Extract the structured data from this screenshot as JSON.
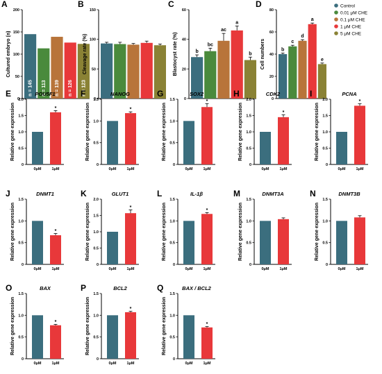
{
  "chart_data": [
    {
      "id": "A",
      "panel_label": "A",
      "type": "bar",
      "title": "",
      "ylabel": "Cultured embryo (n)",
      "ylim": [
        0,
        200
      ],
      "yticks": [
        0,
        50,
        100,
        150,
        200
      ],
      "categories": [
        "Control",
        "0.01 µM CHE",
        "0.1 µM CHE",
        "1 µM CHE",
        "5 µM CHE"
      ],
      "values": [
        145,
        113,
        139,
        126,
        123
      ],
      "bar_labels": [
        "n = 145",
        "n = 113",
        "n = 139",
        "n = 126",
        "n = 123"
      ]
    },
    {
      "id": "B",
      "panel_label": "B",
      "type": "bar",
      "title": "",
      "ylabel": "Cleavage rate (%)",
      "ylim": [
        0,
        150
      ],
      "yticks": [
        0,
        50,
        100,
        150
      ],
      "categories": [
        "Control",
        "0.01 µM CHE",
        "0.1 µM CHE",
        "1 µM CHE",
        "5 µM CHE"
      ],
      "values": [
        93,
        92,
        91,
        94,
        90
      ],
      "errors": [
        2,
        3,
        2,
        3,
        2
      ]
    },
    {
      "id": "C",
      "panel_label": "C",
      "type": "bar",
      "title": "",
      "ylabel": "Blastocyst rate (%)",
      "ylim": [
        0,
        60
      ],
      "yticks": [
        0,
        20,
        40,
        60
      ],
      "categories": [
        "Control",
        "0.01 µM CHE",
        "0.1 µM CHE",
        "1 µM CHE",
        "5 µM CHE"
      ],
      "values": [
        28,
        32,
        39,
        46,
        26
      ],
      "errors": [
        1.5,
        2,
        5,
        3,
        2
      ],
      "letters": [
        "b",
        "bc",
        "ac",
        "a",
        "b"
      ]
    },
    {
      "id": "D",
      "panel_label": "D",
      "type": "bar",
      "title": "",
      "ylabel": "Cell numbers",
      "ylim": [
        0,
        80
      ],
      "yticks": [
        0,
        20,
        40,
        60,
        80
      ],
      "categories": [
        "Control",
        "0.01 µM CHE",
        "0.1 µM CHE",
        "1 µM CHE",
        "5 µM CHE"
      ],
      "values": [
        40,
        47,
        52,
        67,
        31
      ],
      "errors": [
        1,
        1,
        1,
        1,
        1
      ],
      "letters": [
        "b",
        "c",
        "d",
        "a",
        "e"
      ]
    },
    {
      "id": "E",
      "panel_label": "E",
      "type": "bar",
      "title": "POU5F1",
      "ylabel": "Relative gene expression",
      "ylim": [
        0,
        2.0
      ],
      "yticks": [
        0,
        0.5,
        1.0,
        1.5,
        2.0
      ],
      "categories": [
        "0μM",
        "1μM"
      ],
      "values": [
        1.0,
        1.6
      ],
      "errors": [
        0,
        0.05
      ],
      "sig": [
        "",
        "*"
      ]
    },
    {
      "id": "F",
      "panel_label": "F",
      "type": "bar",
      "title": "NANOG",
      "ylabel": "Relative gene expression",
      "ylim": [
        0,
        1.5
      ],
      "yticks": [
        0,
        0.5,
        1.0,
        1.5
      ],
      "categories": [
        "0μM",
        "1μM"
      ],
      "values": [
        1.0,
        1.18
      ],
      "errors": [
        0,
        0.03
      ],
      "sig": [
        "",
        "*"
      ]
    },
    {
      "id": "G",
      "panel_label": "G",
      "type": "bar",
      "title": "SOX2",
      "ylabel": "Relative gene expression",
      "ylim": [
        0,
        1.5
      ],
      "yticks": [
        0,
        0.5,
        1.0,
        1.5
      ],
      "categories": [
        "0μM",
        "1μM"
      ],
      "values": [
        1.0,
        1.32
      ],
      "errors": [
        0,
        0.08
      ],
      "sig": [
        "",
        "*"
      ]
    },
    {
      "id": "H",
      "panel_label": "H",
      "type": "bar",
      "title": "CDK2",
      "ylabel": "Relative gene expression",
      "ylim": [
        0,
        2.0
      ],
      "yticks": [
        0,
        0.5,
        1.0,
        1.5,
        2.0
      ],
      "categories": [
        "0μM",
        "1μM"
      ],
      "values": [
        1.0,
        1.45
      ],
      "errors": [
        0,
        0.07
      ],
      "sig": [
        "",
        "*"
      ]
    },
    {
      "id": "I",
      "panel_label": "I",
      "type": "bar",
      "title": "PCNA",
      "ylabel": "Relative gene expression",
      "ylim": [
        0,
        2.0
      ],
      "yticks": [
        0,
        0.5,
        1.0,
        1.5,
        2.0
      ],
      "categories": [
        "0μM",
        "1μM"
      ],
      "values": [
        1.0,
        1.8
      ],
      "errors": [
        0,
        0.06
      ],
      "sig": [
        "",
        "*"
      ]
    },
    {
      "id": "J",
      "panel_label": "J",
      "type": "bar",
      "title": "DNMT1",
      "ylabel": "Relative gene expression",
      "ylim": [
        0,
        1.5
      ],
      "yticks": [
        0,
        0.5,
        1.0,
        1.5
      ],
      "categories": [
        "0μM",
        "1μM"
      ],
      "values": [
        1.0,
        0.67
      ],
      "errors": [
        0,
        0.04
      ],
      "sig": [
        "",
        "*"
      ]
    },
    {
      "id": "K",
      "panel_label": "K",
      "type": "bar",
      "title": "GLUT1",
      "ylabel": "Relative gene expression",
      "ylim": [
        0,
        2.0
      ],
      "yticks": [
        0,
        0.5,
        1.0,
        1.5,
        2.0
      ],
      "categories": [
        "0μM",
        "1μM"
      ],
      "values": [
        1.0,
        1.57
      ],
      "errors": [
        0,
        0.1
      ],
      "sig": [
        "",
        "*"
      ]
    },
    {
      "id": "L",
      "panel_label": "L",
      "type": "bar",
      "title": "IL-1β",
      "ylabel": "Relative gene expression",
      "ylim": [
        0,
        1.5
      ],
      "yticks": [
        0,
        0.5,
        1.0,
        1.5
      ],
      "categories": [
        "0μM",
        "1μM"
      ],
      "values": [
        1.0,
        1.16
      ],
      "errors": [
        0,
        0.03
      ],
      "sig": [
        "",
        "*"
      ]
    },
    {
      "id": "M",
      "panel_label": "M",
      "type": "bar",
      "title": "DNMT3A",
      "ylabel": "Relative gene expression",
      "ylim": [
        0,
        1.5
      ],
      "yticks": [
        0,
        0.5,
        1.0,
        1.5
      ],
      "categories": [
        "0μM",
        "1μM"
      ],
      "values": [
        1.0,
        1.04
      ],
      "errors": [
        0,
        0.03
      ],
      "sig": [
        "",
        ""
      ]
    },
    {
      "id": "N",
      "panel_label": "N",
      "type": "bar",
      "title": "DNMT3B",
      "ylabel": "Relative gene expression",
      "ylim": [
        0,
        1.5
      ],
      "yticks": [
        0,
        0.5,
        1.0,
        1.5
      ],
      "categories": [
        "0μM",
        "1μM"
      ],
      "values": [
        1.0,
        1.08
      ],
      "errors": [
        0,
        0.04
      ],
      "sig": [
        "",
        ""
      ]
    },
    {
      "id": "O",
      "panel_label": "O",
      "type": "bar",
      "title": "BAX",
      "ylabel": "Relative gene expression",
      "ylim": [
        0,
        1.5
      ],
      "yticks": [
        0,
        0.5,
        1.0,
        1.5
      ],
      "categories": [
        "0μM",
        "1μM"
      ],
      "values": [
        1.0,
        0.77
      ],
      "errors": [
        0,
        0.02
      ],
      "sig": [
        "",
        "*"
      ]
    },
    {
      "id": "P",
      "panel_label": "P",
      "type": "bar",
      "title": "BCL2",
      "ylabel": "Relative gene expression",
      "ylim": [
        0,
        1.5
      ],
      "yticks": [
        0,
        0.5,
        1.0,
        1.5
      ],
      "categories": [
        "0μM",
        "1μM"
      ],
      "values": [
        1.0,
        1.07
      ],
      "errors": [
        0,
        0.02
      ],
      "sig": [
        "",
        "*"
      ]
    },
    {
      "id": "Q",
      "panel_label": "Q",
      "type": "bar",
      "title": "BAX / BCL2",
      "ylabel": "Relative gene expression",
      "ylim": [
        0,
        1.5
      ],
      "yticks": [
        0,
        0.5,
        1.0,
        1.5
      ],
      "categories": [
        "0μM",
        "1μM"
      ],
      "values": [
        1.0,
        0.72
      ],
      "errors": [
        0,
        0.02
      ],
      "sig": [
        "",
        "*"
      ]
    }
  ],
  "legend": {
    "placement": "top-right",
    "items": [
      {
        "label": "Control",
        "color": "#3b6e7e"
      },
      {
        "label": "0.01 μM CHE",
        "color": "#4a8a3c"
      },
      {
        "label": "0.1 μM CHE",
        "color": "#b8743a"
      },
      {
        "label": "1 μM CHE",
        "color": "#e8383a"
      },
      {
        "label": "5 μM CHE",
        "color": "#8a8235"
      }
    ]
  },
  "colors": {
    "control": "#3b6e7e",
    "treated": "#e8383a",
    "groups": [
      "#3b6e7e",
      "#4a8a3c",
      "#b8743a",
      "#e8383a",
      "#8a8235"
    ]
  }
}
